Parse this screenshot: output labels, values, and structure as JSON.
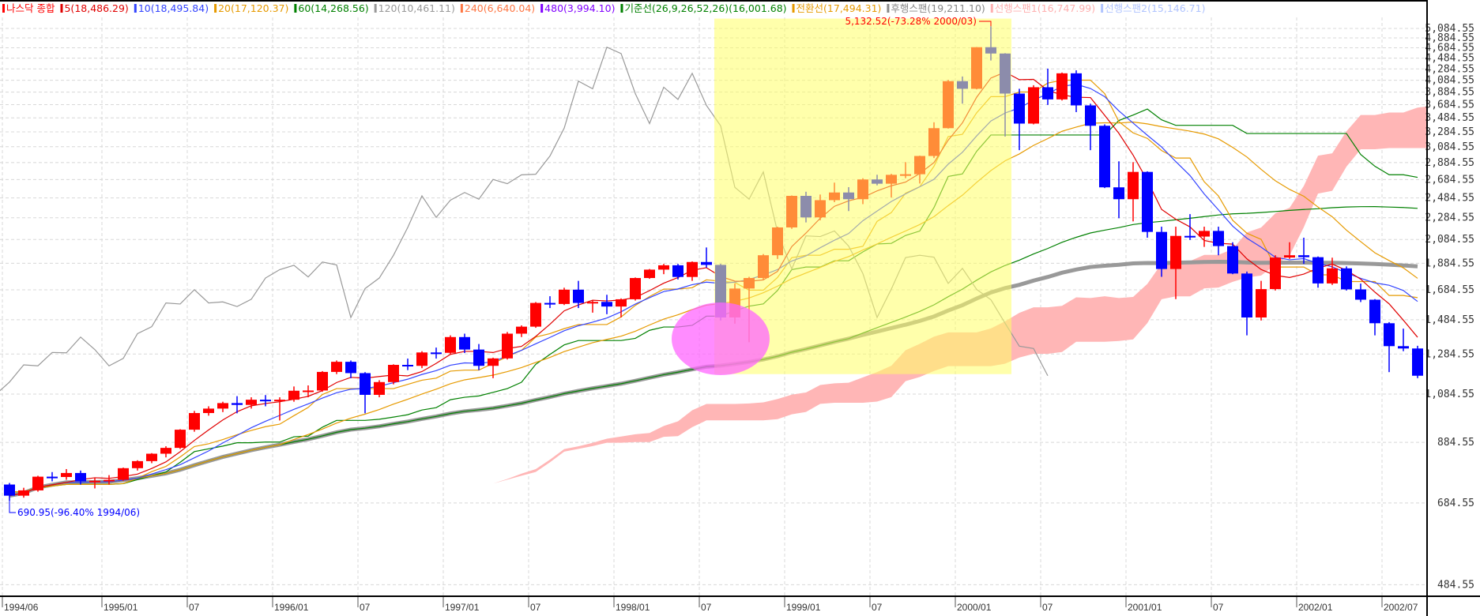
{
  "legend": [
    {
      "label": "나스닥 종합",
      "color": "#ff0000"
    },
    {
      "label": "5(18,486.29)",
      "color": "#e00000"
    },
    {
      "label": "10(18,495.84)",
      "color": "#3344ff"
    },
    {
      "label": "20(17,120.37)",
      "color": "#e69a00"
    },
    {
      "label": "60(14,268.56)",
      "color": "#008000"
    },
    {
      "label": "120(10,461.11)",
      "color": "#999999"
    },
    {
      "label": "240(6,640.04)",
      "color": "#ff7744"
    },
    {
      "label": "480(3,994.10)",
      "color": "#8000ff"
    },
    {
      "label": "기준선(26,9,26,52,26)(16,001.68)",
      "color": "#008000"
    },
    {
      "label": "전환선(17,494.31)",
      "color": "#e69a00"
    },
    {
      "label": "후행스팬(19,211.10)",
      "color": "#888888"
    },
    {
      "label": "선행스팬1(16,747.99)",
      "color": "#ffb0b0"
    },
    {
      "label": "선행스팬2(15,146.71)",
      "color": "#b0c4ff"
    }
  ],
  "chart_data": {
    "type": "candlestick",
    "title": "나스닥 종합",
    "y_scale": "log",
    "ylim": [
      440,
      5300
    ],
    "y_ticks": [
      "5,084.55",
      "4,884.55",
      "4,684.55",
      "4,484.55",
      "4,284.55",
      "4,084.55",
      "3,884.55",
      "3,684.55",
      "3,484.55",
      "3,284.55",
      "3,084.55",
      "2,884.55",
      "2,684.55",
      "2,484.55",
      "2,284.55",
      "2,084.55",
      "1,884.55",
      "1,684.55",
      "1,484.55",
      "1,284.55",
      "1,084.55",
      "884.55",
      "684.55",
      "484.55"
    ],
    "x_ticks": [
      {
        "label": "1994/06",
        "month": "1994/06"
      },
      {
        "label": "1995/01",
        "month": "1995/01"
      },
      {
        "label": "07",
        "month": "1995/07"
      },
      {
        "label": "1996/01",
        "month": "1996/01"
      },
      {
        "label": "07",
        "month": "1996/07"
      },
      {
        "label": "1997/01",
        "month": "1997/01"
      },
      {
        "label": "07",
        "month": "1997/07"
      },
      {
        "label": "1998/01",
        "month": "1998/01"
      },
      {
        "label": "07",
        "month": "1998/07"
      },
      {
        "label": "1999/01",
        "month": "1999/01"
      },
      {
        "label": "07",
        "month": "1999/07"
      },
      {
        "label": "2000/01",
        "month": "2000/01"
      },
      {
        "label": "07",
        "month": "2000/07"
      },
      {
        "label": "2001/01",
        "month": "2001/01"
      },
      {
        "label": "07",
        "month": "2001/07"
      },
      {
        "label": "2002/01",
        "month": "2002/01"
      },
      {
        "label": "2002/07",
        "month": "2002/07"
      }
    ],
    "grid": true,
    "start_month": "1994/06",
    "ohlc_order": [
      "open",
      "high",
      "low",
      "close"
    ],
    "ohlc": [
      [
        740,
        745,
        690.95,
        706
      ],
      [
        706,
        730,
        700,
        722
      ],
      [
        722,
        768,
        718,
        765
      ],
      [
        765,
        780,
        750,
        764
      ],
      [
        764,
        790,
        755,
        777
      ],
      [
        777,
        785,
        740,
        750
      ],
      [
        750,
        760,
        728,
        752
      ],
      [
        752,
        770,
        740,
        755
      ],
      [
        755,
        795,
        752,
        793
      ],
      [
        793,
        820,
        785,
        817
      ],
      [
        817,
        845,
        810,
        843
      ],
      [
        843,
        870,
        830,
        864
      ],
      [
        864,
        935,
        860,
        933
      ],
      [
        933,
        1010,
        925,
        1001
      ],
      [
        1001,
        1030,
        990,
        1020
      ],
      [
        1020,
        1050,
        1005,
        1044
      ],
      [
        1044,
        1075,
        1000,
        1036
      ],
      [
        1036,
        1070,
        1020,
        1059
      ],
      [
        1059,
        1080,
        1030,
        1052
      ],
      [
        1052,
        1070,
        970,
        1059
      ],
      [
        1059,
        1120,
        1050,
        1100
      ],
      [
        1100,
        1125,
        1070,
        1101
      ],
      [
        1101,
        1195,
        1095,
        1191
      ],
      [
        1191,
        1250,
        1180,
        1243
      ],
      [
        1243,
        1250,
        1160,
        1185
      ],
      [
        1185,
        1190,
        1000,
        1081
      ],
      [
        1081,
        1150,
        1070,
        1141
      ],
      [
        1141,
        1230,
        1130,
        1227
      ],
      [
        1227,
        1260,
        1200,
        1222
      ],
      [
        1222,
        1300,
        1210,
        1293
      ],
      [
        1293,
        1320,
        1260,
        1291
      ],
      [
        1291,
        1390,
        1285,
        1380
      ],
      [
        1380,
        1400,
        1290,
        1309
      ],
      [
        1309,
        1340,
        1200,
        1222
      ],
      [
        1222,
        1265,
        1160,
        1261
      ],
      [
        1261,
        1410,
        1255,
        1400
      ],
      [
        1400,
        1450,
        1380,
        1442
      ],
      [
        1442,
        1600,
        1435,
        1594
      ],
      [
        1594,
        1640,
        1560,
        1587
      ],
      [
        1587,
        1700,
        1580,
        1686
      ],
      [
        1686,
        1750,
        1560,
        1594
      ],
      [
        1594,
        1610,
        1530,
        1601
      ],
      [
        1601,
        1650,
        1520,
        1570
      ],
      [
        1570,
        1625,
        1500,
        1619
      ],
      [
        1619,
        1775,
        1610,
        1771
      ],
      [
        1771,
        1840,
        1765,
        1835
      ],
      [
        1835,
        1880,
        1800,
        1869
      ],
      [
        1869,
        1880,
        1760,
        1779
      ],
      [
        1779,
        1900,
        1750,
        1895
      ],
      [
        1895,
        2015,
        1850,
        1872
      ],
      [
        1872,
        1880,
        1480,
        1499
      ],
      [
        1499,
        1730,
        1460,
        1694
      ],
      [
        1694,
        1780,
        1350,
        1771
      ],
      [
        1771,
        1960,
        1760,
        1950
      ],
      [
        1950,
        2200,
        1920,
        2193
      ],
      [
        2193,
        2510,
        2180,
        2506
      ],
      [
        2506,
        2550,
        2240,
        2288
      ],
      [
        2288,
        2520,
        2260,
        2461
      ],
      [
        2461,
        2650,
        2440,
        2542
      ],
      [
        2542,
        2600,
        2350,
        2471
      ],
      [
        2471,
        2700,
        2420,
        2686
      ],
      [
        2686,
        2740,
        2620,
        2638
      ],
      [
        2638,
        2750,
        2490,
        2739
      ],
      [
        2739,
        2890,
        2700,
        2746
      ],
      [
        2746,
        2970,
        2640,
        2966
      ],
      [
        2966,
        3420,
        2940,
        3336
      ],
      [
        3336,
        4090,
        3330,
        4069
      ],
      [
        4069,
        4150,
        3700,
        3940
      ],
      [
        3940,
        4700,
        3930,
        4697
      ],
      [
        4697,
        5132.52,
        4440,
        4573
      ],
      [
        4573,
        4580,
        3220,
        3861
      ],
      [
        3861,
        3940,
        3040,
        3401
      ],
      [
        3401,
        4000,
        3390,
        3966
      ],
      [
        3966,
        4290,
        3680,
        3767
      ],
      [
        3767,
        4220,
        3750,
        4206
      ],
      [
        4206,
        4260,
        3570,
        3673
      ],
      [
        3673,
        3700,
        3040,
        3370
      ],
      [
        3370,
        3390,
        2590,
        2598
      ],
      [
        2598,
        2900,
        2280,
        2471
      ],
      [
        2471,
        2890,
        2250,
        2773
      ],
      [
        2773,
        2780,
        2100,
        2152
      ],
      [
        2152,
        2200,
        1780,
        1840
      ],
      [
        1840,
        2200,
        1620,
        2116
      ],
      [
        2116,
        2320,
        2080,
        2110
      ],
      [
        2110,
        2200,
        2020,
        2161
      ],
      [
        2161,
        2200,
        1950,
        2027
      ],
      [
        2027,
        2060,
        1800,
        1805
      ],
      [
        1805,
        1820,
        1390,
        1499
      ],
      [
        1499,
        1750,
        1480,
        1690
      ],
      [
        1690,
        1950,
        1680,
        1931
      ],
      [
        1931,
        2060,
        1920,
        1950
      ],
      [
        1950,
        2100,
        1880,
        1934
      ],
      [
        1934,
        1940,
        1700,
        1731
      ],
      [
        1731,
        1930,
        1720,
        1845
      ],
      [
        1845,
        1860,
        1680,
        1688
      ],
      [
        1688,
        1730,
        1600,
        1616
      ],
      [
        1616,
        1620,
        1390,
        1463
      ],
      [
        1463,
        1470,
        1190,
        1328
      ],
      [
        1328,
        1430,
        1300,
        1315
      ],
      [
        1315,
        1330,
        1160,
        1172
      ]
    ],
    "colors": {
      "up": "#ff0000",
      "down": "#0000ff",
      "highlight_box": "#ffff66",
      "highlight_circle": "#ff66ff",
      "cloud": "#ffb0b0"
    },
    "annotations": {
      "max_label": "5,132.52(-73.28% 2000/03)",
      "min_label": "690.95(-96.40% 1994/06)",
      "highlight_box": {
        "from": "1998/08",
        "to": "2000/04",
        "price_range": [
          1180,
          5300
        ]
      },
      "highlight_circle": {
        "month": "1998/08",
        "price": 1370
      }
    }
  }
}
